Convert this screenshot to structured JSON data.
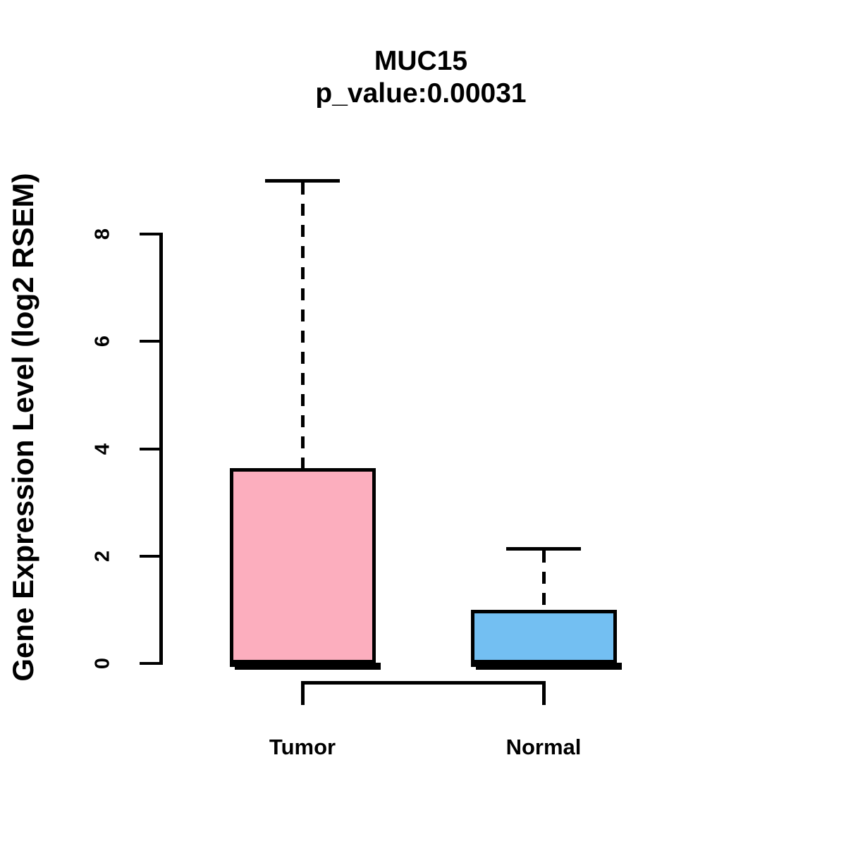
{
  "figure": {
    "background": "#FFFFFF"
  },
  "chart_data": {
    "type": "boxplot",
    "title": "MUC15",
    "subtitle": "p_value:0.00031",
    "gene": "MUC15",
    "p_value": "0.00031",
    "ylabel": "Gene Expression Level (log2 RSEM)",
    "categories": [
      "Tumor",
      "Normal"
    ],
    "yticks": [
      0,
      2,
      4,
      6,
      8
    ],
    "ylim": [
      0,
      9.0
    ],
    "grid": false,
    "legend": "none",
    "series": [
      {
        "name": "Tumor",
        "fill_color": "#FCAEBE",
        "stats": {
          "whisker_low": 0,
          "q1": 0,
          "median": 0,
          "q3": 3.64,
          "whisker_high": 9.0
        }
      },
      {
        "name": "Normal",
        "fill_color": "#73BFF2",
        "stats": {
          "whisker_low": 0,
          "q1": 0,
          "median": 0,
          "q3": 1.0,
          "whisker_high": 2.14
        }
      }
    ]
  }
}
